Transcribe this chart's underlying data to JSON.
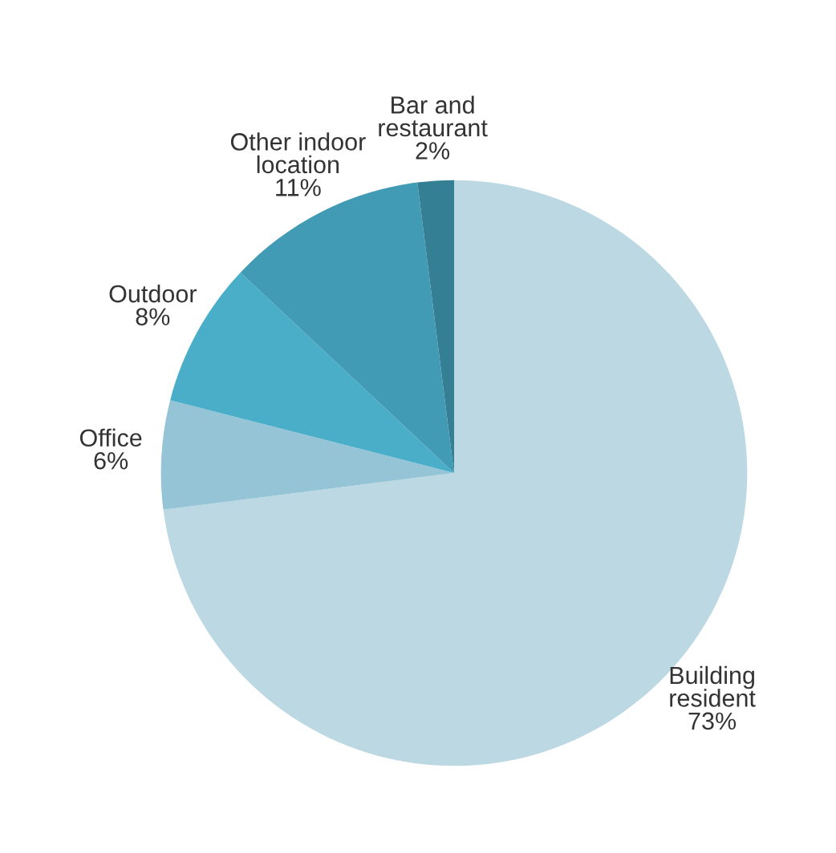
{
  "chart_data": {
    "type": "pie",
    "categories": [
      "Building\nresident",
      "Office",
      "Outdoor",
      "Other indoor\nlocation",
      "Bar and\nrestaurant"
    ],
    "values": [
      73,
      6,
      8,
      11,
      2
    ],
    "value_labels": [
      "73%",
      "6%",
      "8%",
      "11%",
      "2%"
    ],
    "colors": [
      "#bcd9e3",
      "#94c4d6",
      "#4aaec9",
      "#429bb5",
      "#347f93"
    ],
    "legend": false
  }
}
